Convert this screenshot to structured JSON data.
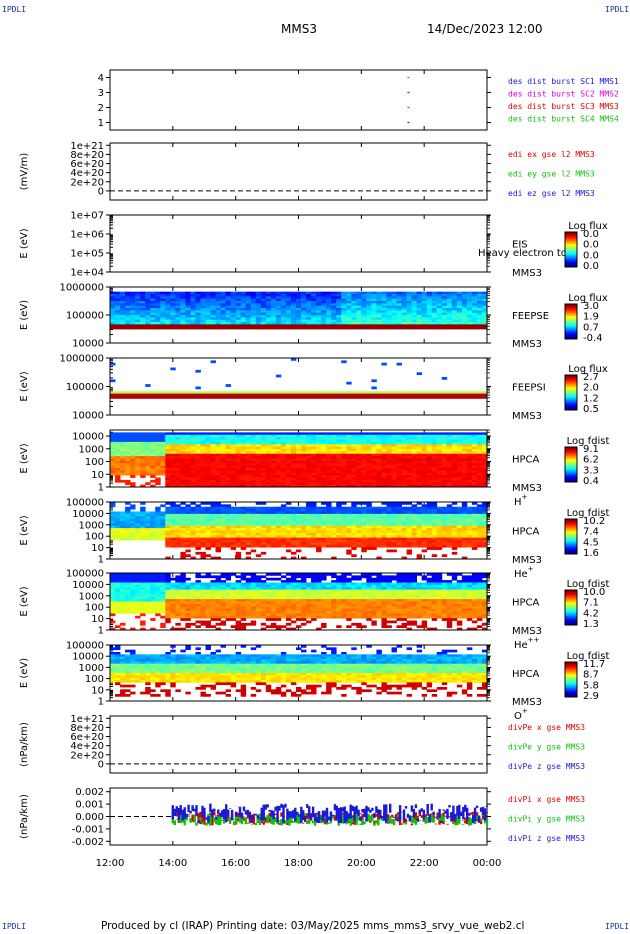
{
  "corner_label": "IPDLI",
  "header": {
    "title": "MMS3",
    "date": "14/Dec/2023 12:00"
  },
  "footer": "Produced by cl (IRAP)   Printing date: 03/May/2025   mms_mms3_srvy_vue_web2.cl",
  "colors": {
    "blue": "#1a1ad8",
    "green": "#10c010",
    "red": "#e00000",
    "magenta": "#e000e0"
  },
  "chart_data": [
    {
      "type": "scatter",
      "id": "burst",
      "yticks": [
        "1",
        "2",
        "3",
        "4"
      ],
      "ylim": [
        0.5,
        4.5
      ],
      "x": [
        "21:30",
        "21:30",
        "21:30",
        "21:30"
      ],
      "values": [
        1,
        2,
        3,
        4
      ],
      "series": [
        {
          "name": "des dist burst SC1 MMS1",
          "color": "#1a1ad8"
        },
        {
          "name": "des dist burst SC2 MMS2",
          "color": "#e000e0"
        },
        {
          "name": "des dist burst SC3 MMS3",
          "color": "#e00000"
        },
        {
          "name": "des dist burst SC4 MMS4",
          "color": "#10c010"
        }
      ]
    },
    {
      "type": "line",
      "id": "edi_e",
      "ylabel": "(mV/m)",
      "yticks": [
        "0",
        "2e+20",
        "4e+20",
        "6e+20",
        "8e+20",
        "1e+21"
      ],
      "ylim": [
        -2e+20,
        1.05e+21
      ],
      "series": [
        {
          "name": "edi ex gse l2 MMS3",
          "color": "#e00000"
        },
        {
          "name": "edi ey gse l2 MMS3",
          "color": "#10c010"
        },
        {
          "name": "edi ez gse l2 MMS3",
          "color": "#1a1ad8"
        }
      ]
    },
    {
      "type": "heatmap",
      "id": "eis",
      "ylabel": "E (eV)",
      "yticks": [
        "1e+04",
        "1e+05",
        "1e+06",
        "1e+07"
      ],
      "ylim": [
        10000,
        10000000
      ],
      "log_y": true,
      "labels": [
        "EIS",
        "MMS3"
      ],
      "annotation": "Heavy electron to",
      "cbar_title": "Log flux",
      "cbar_ticks": [
        "0.0",
        "0.0",
        "0.0",
        "0.0"
      ]
    },
    {
      "type": "heatmap",
      "id": "feepse",
      "ylabel": "E (eV)",
      "yticks": [
        "10000",
        "100000",
        "1000000"
      ],
      "ylim": [
        10000,
        1000000
      ],
      "log_y": true,
      "labels": [
        "FEEPSE",
        "MMS3"
      ],
      "cbar_title": "Log flux",
      "cbar_ticks": [
        "3.0",
        "1.9",
        "0.7",
        "-0.4"
      ]
    },
    {
      "type": "heatmap",
      "id": "feepsi",
      "ylabel": "E (eV)",
      "yticks": [
        "10000",
        "100000",
        "1000000"
      ],
      "ylim": [
        10000,
        1000000
      ],
      "log_y": true,
      "labels": [
        "FEEPSI",
        "MMS3"
      ],
      "cbar_title": "Log flux",
      "cbar_ticks": [
        "2.7",
        "2.0",
        "1.2",
        "0.5"
      ]
    },
    {
      "type": "heatmap",
      "id": "hpca_h",
      "ylabel": "E (eV)",
      "yticks": [
        "1",
        "10",
        "100",
        "1000",
        "10000"
      ],
      "ylim": [
        1,
        30000
      ],
      "log_y": true,
      "labels": [
        "HPCA",
        "MMS3"
      ],
      "species": "H",
      "species_sup": "+",
      "cbar_title": "Log fdist",
      "cbar_ticks": [
        "9.1",
        "6.2",
        "3.3",
        "0.4"
      ]
    },
    {
      "type": "heatmap",
      "id": "hpca_he1",
      "ylabel": "E (eV)",
      "yticks": [
        "1",
        "10",
        "100",
        "1000",
        "10000",
        "100000"
      ],
      "ylim": [
        1,
        100000
      ],
      "log_y": true,
      "labels": [
        "HPCA",
        "MMS3"
      ],
      "species": "He",
      "species_sup": "+",
      "cbar_title": "Log fdist",
      "cbar_ticks": [
        "10.2",
        "7.4",
        "4.5",
        "1.6"
      ]
    },
    {
      "type": "heatmap",
      "id": "hpca_he2",
      "ylabel": "E (eV)",
      "yticks": [
        "1",
        "10",
        "100",
        "1000",
        "10000",
        "100000"
      ],
      "ylim": [
        1,
        100000
      ],
      "log_y": true,
      "labels": [
        "HPCA",
        "MMS3"
      ],
      "species": "He",
      "species_sup": "++",
      "cbar_title": "Log fdist",
      "cbar_ticks": [
        "10.0",
        "7.1",
        "4.2",
        "1.3"
      ]
    },
    {
      "type": "heatmap",
      "id": "hpca_o",
      "ylabel": "E (eV)",
      "yticks": [
        "1",
        "10",
        "100",
        "1000",
        "10000",
        "100000"
      ],
      "ylim": [
        1,
        100000
      ],
      "log_y": true,
      "labels": [
        "HPCA",
        "MMS3"
      ],
      "species": "O",
      "species_sup": "+",
      "cbar_title": "Log fdist",
      "cbar_ticks": [
        "11.7",
        "8.7",
        "5.8",
        "2.9"
      ]
    },
    {
      "type": "line",
      "id": "divpe",
      "ylabel": "(nPa/km)",
      "yticks": [
        "0",
        "2e+20",
        "4e+20",
        "6e+20",
        "8e+20",
        "1e+21"
      ],
      "ylim": [
        -2e+20,
        1.05e+21
      ],
      "series": [
        {
          "name": "divPe x gse MMS3",
          "color": "#e00000"
        },
        {
          "name": "divPe y gse MMS3",
          "color": "#10c010"
        },
        {
          "name": "divPe z gse MMS3",
          "color": "#1a1ad8"
        }
      ]
    },
    {
      "type": "line",
      "id": "divpi",
      "ylabel": "(nPa/km)",
      "yticks": [
        "-0.002",
        "-0.001",
        "0.000",
        "0.001",
        "0.002"
      ],
      "ylim": [
        -0.0023,
        0.0023
      ],
      "data_start": "14:00",
      "series": [
        {
          "name": "divPi x gse MMS3",
          "color": "#e00000"
        },
        {
          "name": "divPi y gse MMS3",
          "color": "#10c010"
        },
        {
          "name": "divPi z gse MMS3",
          "color": "#1a1ad8"
        }
      ]
    }
  ],
  "xaxis": {
    "ticks": [
      "12:00",
      "14:00",
      "16:00",
      "18:00",
      "20:00",
      "22:00",
      "00:00"
    ],
    "range": [
      "12:00",
      "00:00"
    ]
  }
}
